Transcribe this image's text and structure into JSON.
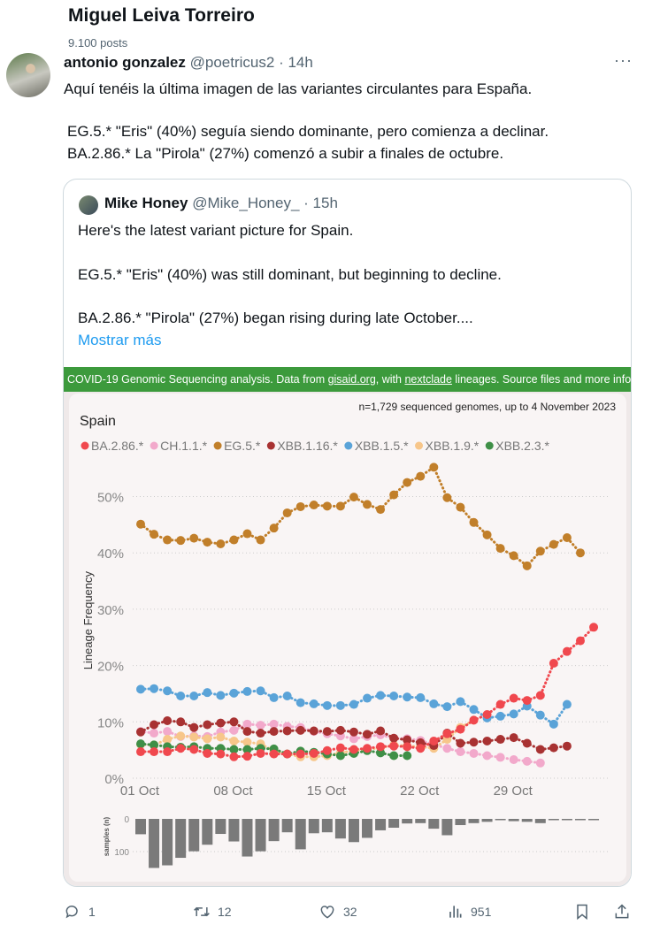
{
  "header": {
    "title": "Miguel Leiva Torreiro",
    "post_count": "9.100 posts"
  },
  "tweet": {
    "author_name": "antonio gonzalez",
    "author_handle": "@poetricus2",
    "time": "· 14h",
    "more_icon": "more-horizontal-icon",
    "lines": [
      "Aquí tenéis la última imagen de las  variantes circulantes para España.",
      "EG.5.* \"Eris\" (40%) seguía siendo dominante, pero comienza a declinar.",
      "BA.2.86.* La \"Pirola\" (27%) comenzó a subir a finales de octubre."
    ]
  },
  "quote": {
    "author_name": "Mike Honey",
    "author_handle": "@Mike_Honey_",
    "time": "· 15h",
    "lines": [
      "Here's the latest variant picture for Spain.",
      "EG.5.* \"Eris\" (40%) was still dominant, but beginning to decline.",
      "BA.2.86.* \"Pirola\" (27%) began rising during late October...."
    ],
    "show_more": "Mostrar más"
  },
  "image": {
    "banner_pre": "COVID-19 Genomic Sequencing analysis. Data from ",
    "banner_link1": "gisaid.org",
    "banner_mid": ", with ",
    "banner_link2": "nextclade",
    "banner_post": " lineages. Source files and more info",
    "banner_color": "#3c9a3c"
  },
  "actions": {
    "replies": "1",
    "reposts": "12",
    "likes": "32",
    "views": "951"
  },
  "chart_data": {
    "type": "line",
    "title": "Spain",
    "subtitle": "n=1,729 sequenced genomes, up to 4 November 2023",
    "ylabel": "Lineage Frequency",
    "ylim": [
      0,
      56
    ],
    "yticks": [
      "0%",
      "10%",
      "20%",
      "30%",
      "40%",
      "50%"
    ],
    "xticks": [
      "01 Oct",
      "08 Oct",
      "15 Oct",
      "22 Oct",
      "29 Oct"
    ],
    "grid": true,
    "legend_position": "top-left",
    "x": [
      "2023-10-01",
      "2023-10-02",
      "2023-10-03",
      "2023-10-04",
      "2023-10-05",
      "2023-10-06",
      "2023-10-07",
      "2023-10-08",
      "2023-10-09",
      "2023-10-10",
      "2023-10-11",
      "2023-10-12",
      "2023-10-13",
      "2023-10-14",
      "2023-10-15",
      "2023-10-16",
      "2023-10-17",
      "2023-10-18",
      "2023-10-19",
      "2023-10-20",
      "2023-10-21",
      "2023-10-22",
      "2023-10-23",
      "2023-10-24",
      "2023-10-25",
      "2023-10-26",
      "2023-10-27",
      "2023-10-28",
      "2023-10-29",
      "2023-10-30",
      "2023-10-31",
      "2023-11-01",
      "2023-11-02",
      "2023-11-03",
      "2023-11-04"
    ],
    "series": [
      {
        "name": "BA.2.86.*",
        "color": "#f0484e",
        "values": [
          4.7,
          4.7,
          4.7,
          5.3,
          5.1,
          4.4,
          4.3,
          3.8,
          3.9,
          4.4,
          4.3,
          4.3,
          4.3,
          4.4,
          4.9,
          5.4,
          5.1,
          5.3,
          5.6,
          5.7,
          5.6,
          5.3,
          6.6,
          7.9,
          8.7,
          10.3,
          11.3,
          13.1,
          14.2,
          13.8,
          14.7,
          20.4,
          22.5,
          24.4,
          26.8
        ]
      },
      {
        "name": "CH.1.1.*",
        "color": "#f2a9cb",
        "values": [
          8.3,
          8.0,
          8.3,
          7.4,
          7.5,
          7.4,
          8.2,
          8.5,
          9.6,
          9.4,
          9.6,
          9.2,
          9.0,
          8.3,
          7.9,
          7.5,
          7.0,
          7.4,
          7.7,
          7.1,
          7.0,
          6.7,
          6.0,
          5.3,
          4.7,
          4.4,
          4.0,
          3.7,
          3.3,
          3.0,
          2.7,
          null,
          null,
          null,
          null
        ]
      },
      {
        "name": "EG.5.*",
        "color": "#c17f2a",
        "values": [
          45.1,
          43.3,
          42.3,
          42.2,
          42.6,
          41.9,
          41.6,
          42.3,
          43.4,
          42.3,
          44.4,
          47.1,
          48.2,
          48.5,
          48.3,
          48.3,
          49.9,
          48.6,
          47.7,
          50.3,
          52.5,
          53.6,
          55.2,
          49.8,
          48.1,
          45.4,
          43.2,
          40.8,
          39.5,
          37.7,
          40.3,
          41.5,
          42.7,
          40.0,
          null
        ]
      },
      {
        "name": "XBB.1.16.*",
        "color": "#a83232",
        "values": [
          8.2,
          9.5,
          10.2,
          10.0,
          9.0,
          9.5,
          9.8,
          10.0,
          8.3,
          8.0,
          8.3,
          8.4,
          8.5,
          8.4,
          8.3,
          8.5,
          8.2,
          7.8,
          8.4,
          7.1,
          6.8,
          6.3,
          5.8,
          8.0,
          6.2,
          6.4,
          6.6,
          6.9,
          7.2,
          6.2,
          5.1,
          5.4,
          5.7,
          null,
          null
        ]
      },
      {
        "name": "XBB.1.5.*",
        "color": "#5aa3d8",
        "values": [
          15.8,
          15.9,
          15.5,
          14.6,
          14.6,
          15.2,
          14.7,
          15.1,
          15.4,
          15.5,
          14.3,
          14.6,
          13.4,
          13.2,
          12.9,
          12.9,
          13.1,
          14.2,
          14.7,
          14.6,
          14.4,
          14.3,
          13.2,
          12.7,
          13.6,
          12.2,
          10.7,
          11.0,
          11.4,
          12.8,
          11.2,
          9.6,
          13.1,
          null,
          null
        ]
      },
      {
        "name": "XBB.1.9.*",
        "color": "#f7c68a",
        "values": [
          6.0,
          5.9,
          6.9,
          7.5,
          7.3,
          7.0,
          7.3,
          6.6,
          6.4,
          6.1,
          4.8,
          4.3,
          3.8,
          3.8,
          4.0,
          4.5,
          4.9,
          5.1,
          5.4,
          5.9,
          5.7,
          5.6,
          5.3,
          6.9,
          9.0,
          10.3,
          null,
          null,
          null,
          null,
          null,
          null,
          null,
          null,
          null
        ]
      },
      {
        "name": "XBB.2.3.*",
        "color": "#3f8f47",
        "values": [
          6.1,
          5.9,
          5.6,
          5.5,
          5.6,
          5.3,
          5.3,
          5.1,
          5.1,
          5.3,
          5.2,
          4.3,
          4.8,
          4.6,
          4.3,
          4.0,
          4.4,
          4.9,
          4.5,
          4.0,
          4.0,
          null,
          null,
          null,
          null,
          null,
          null,
          null,
          null,
          null,
          null,
          null,
          null,
          null,
          null
        ]
      }
    ],
    "samples": {
      "ylabel": "samples (n)",
      "yticks": [
        "0",
        "100"
      ],
      "color": "#7a7a7a",
      "values": [
        47,
        150,
        142,
        119,
        99,
        79,
        46,
        69,
        115,
        99,
        68,
        41,
        93,
        44,
        41,
        60,
        71,
        58,
        35,
        27,
        14,
        13,
        30,
        50,
        19,
        13,
        9,
        3,
        7,
        9,
        13,
        4,
        4,
        3,
        3
      ]
    }
  }
}
